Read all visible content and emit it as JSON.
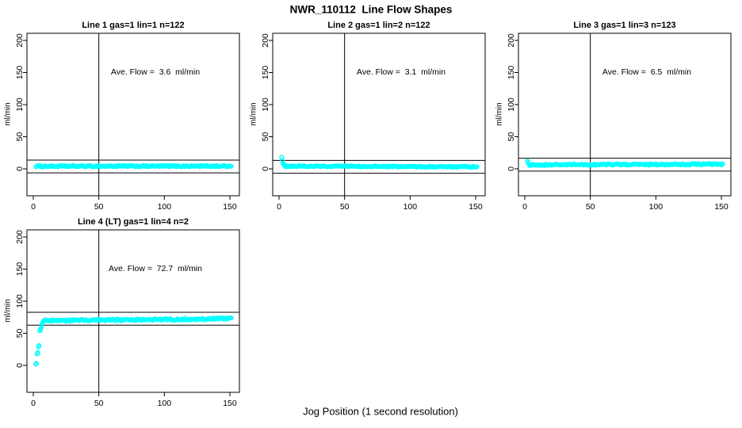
{
  "page": {
    "title": "NWR_110112  Line Flow Shapes",
    "xlabel": "Jog Position (1 second resolution)"
  },
  "colors": {
    "points": "#00ffff",
    "axis": "#000000",
    "background": "#ffffff"
  },
  "chart_data": [
    {
      "type": "scatter",
      "title": "Line 1 gas=1 lin=1 n=122",
      "ave_flow": 3.6,
      "ave_flow_label": "Ave. Flow =  3.6  ml/min",
      "ylabel": "ml/min",
      "x_ticks": [
        0,
        50,
        100,
        150
      ],
      "y_ticks": [
        0,
        50,
        100,
        150,
        200
      ],
      "xlim": [
        -5,
        157
      ],
      "ylim": [
        -42,
        210
      ],
      "vline_x": 50,
      "hlines": [
        13.6,
        -6.4
      ],
      "annotation_xy": [
        92,
        150
      ],
      "transient_points": [],
      "steady": {
        "x_from": 2,
        "x_to": 151,
        "step": 1,
        "level_start": 4.0,
        "level_end": 4.2,
        "noise": 1.1
      }
    },
    {
      "type": "scatter",
      "title": "Line 2 gas=1 lin=2 n=122",
      "ave_flow": 3.1,
      "ave_flow_label": "Ave. Flow =  3.1  ml/min",
      "ylabel": "ml/min",
      "x_ticks": [
        0,
        50,
        100,
        150
      ],
      "y_ticks": [
        0,
        50,
        100,
        150,
        200
      ],
      "xlim": [
        -5,
        157
      ],
      "ylim": [
        -42,
        210
      ],
      "vline_x": 50,
      "hlines": [
        13.1,
        -6.9
      ],
      "annotation_xy": [
        92,
        150
      ],
      "transient_points": [
        [
          2,
          18
        ],
        [
          2.6,
          13
        ],
        [
          3,
          8.5
        ],
        [
          3.6,
          6.5
        ],
        [
          4.2,
          5.2
        ]
      ],
      "steady": {
        "x_from": 5,
        "x_to": 151,
        "step": 1,
        "level_start": 4.2,
        "level_end": 3.0,
        "noise": 0.9
      }
    },
    {
      "type": "scatter",
      "title": "Line 3 gas=1 lin=3 n=123",
      "ave_flow": 6.5,
      "ave_flow_label": "Ave. Flow =  6.5  ml/min",
      "ylabel": "ml/min",
      "x_ticks": [
        0,
        50,
        100,
        150
      ],
      "y_ticks": [
        0,
        50,
        100,
        150,
        200
      ],
      "xlim": [
        -5,
        157
      ],
      "ylim": [
        -42,
        210
      ],
      "vline_x": 50,
      "hlines": [
        16.5,
        -3.5
      ],
      "annotation_xy": [
        92,
        150
      ],
      "transient_points": [
        [
          2,
          12
        ],
        [
          2.6,
          9.5
        ],
        [
          3.2,
          7
        ],
        [
          3.8,
          5.2
        ],
        [
          4.4,
          5.5
        ]
      ],
      "steady": {
        "x_from": 5,
        "x_to": 151,
        "step": 1,
        "level_start": 6.2,
        "level_end": 7.2,
        "noise": 1.1
      }
    },
    {
      "type": "scatter",
      "title": "Line 4 (LT) gas=1 lin=4 n=2",
      "ave_flow": 72.7,
      "ave_flow_label": "Ave. Flow =  72.7  ml/min",
      "ylabel": "ml/min",
      "x_ticks": [
        0,
        50,
        100,
        150
      ],
      "y_ticks": [
        0,
        50,
        100,
        150,
        200
      ],
      "xlim": [
        -5,
        157
      ],
      "ylim": [
        -42,
        210
      ],
      "vline_x": 50,
      "hlines": [
        82.7,
        62.7
      ],
      "annotation_xy": [
        92,
        150
      ],
      "transient_points": [
        [
          2,
          2
        ],
        [
          2.4,
          3
        ],
        [
          3,
          18
        ],
        [
          3.4,
          20
        ],
        [
          4,
          29
        ],
        [
          4.4,
          31
        ],
        [
          5,
          54
        ],
        [
          5.4,
          56
        ],
        [
          6,
          58
        ],
        [
          6.6,
          63
        ],
        [
          7,
          66
        ],
        [
          7.6,
          68
        ]
      ],
      "steady": {
        "x_from": 8,
        "x_to": 151,
        "step": 1,
        "level_start": 69.5,
        "level_end": 72.8,
        "noise": 1.5
      }
    }
  ]
}
